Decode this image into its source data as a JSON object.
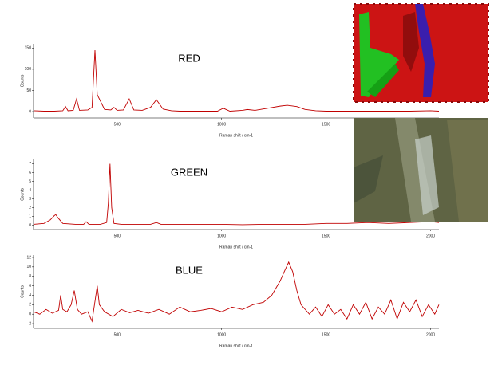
{
  "chart_data": [
    {
      "type": "line",
      "title": "RED",
      "x_label": "Raman shift / cm-1",
      "y_label": "Counts",
      "color": "#c00000",
      "xlim": [
        100,
        2040
      ],
      "ylim": [
        -15,
        160
      ],
      "xticks": [
        500,
        1000,
        1500
      ],
      "yticks": [
        0,
        50,
        100,
        150
      ],
      "x": [
        100,
        150,
        200,
        240,
        253,
        265,
        290,
        306,
        320,
        360,
        380,
        394,
        405,
        420,
        440,
        470,
        485,
        500,
        530,
        558,
        580,
        620,
        660,
        688,
        720,
        760,
        800,
        900,
        980,
        1008,
        1040,
        1100,
        1123,
        1160,
        1220,
        1280,
        1314,
        1360,
        1400,
        1450,
        1500,
        1600,
        1700,
        1800,
        1900,
        2000,
        2040
      ],
      "values": [
        2,
        1,
        1,
        2,
        12,
        2,
        3,
        30,
        3,
        4,
        10,
        145,
        40,
        25,
        5,
        4,
        10,
        3,
        4,
        30,
        4,
        3,
        10,
        28,
        6,
        2,
        1,
        1,
        1,
        8,
        1,
        3,
        5,
        3,
        8,
        13,
        15,
        12,
        5,
        2,
        1,
        1,
        1,
        1,
        1,
        2,
        1
      ]
    },
    {
      "type": "line",
      "title": "GREEN",
      "x_label": "Raman shift / cm-1",
      "y_label": "Counts",
      "color": "#c00000",
      "xlim": [
        100,
        2040
      ],
      "ylim": [
        -0.5,
        7.5
      ],
      "xticks": [
        500,
        1000,
        1500,
        2000
      ],
      "yticks": [
        0,
        1,
        2,
        3,
        4,
        5,
        6,
        7
      ],
      "x": [
        100,
        150,
        180,
        200,
        207,
        215,
        240,
        300,
        340,
        352,
        365,
        420,
        450,
        458,
        466,
        474,
        485,
        520,
        600,
        660,
        688,
        710,
        800,
        900,
        1000,
        1100,
        1200,
        1300,
        1400,
        1500,
        1600,
        1700,
        1800,
        1900,
        2000,
        2040
      ],
      "values": [
        0.1,
        0.2,
        0.6,
        1.1,
        1.2,
        0.9,
        0.2,
        0.1,
        0.1,
        0.4,
        0.1,
        0.1,
        0.3,
        2.5,
        7,
        2,
        0.2,
        0.1,
        0.1,
        0.1,
        0.3,
        0.1,
        0.1,
        0.1,
        0.1,
        0.05,
        0.1,
        0.1,
        0.1,
        0.2,
        0.2,
        0.3,
        0.2,
        0.3,
        0.4,
        0.3
      ]
    },
    {
      "type": "line",
      "title": "BLUE",
      "x_label": "Raman shift / cm-1",
      "y_label": "Counts",
      "color": "#c00000",
      "xlim": [
        100,
        2040
      ],
      "ylim": [
        -3,
        12.5
      ],
      "xticks": [
        500,
        1000,
        1500,
        2000
      ],
      "yticks": [
        -2,
        0,
        2,
        4,
        6,
        8,
        10,
        12
      ],
      "x": [
        100,
        130,
        160,
        190,
        220,
        230,
        240,
        260,
        280,
        295,
        310,
        330,
        360,
        380,
        395,
        405,
        415,
        440,
        480,
        520,
        560,
        600,
        650,
        700,
        750,
        800,
        850,
        900,
        950,
        1000,
        1050,
        1100,
        1150,
        1200,
        1240,
        1280,
        1300,
        1321,
        1340,
        1360,
        1380,
        1400,
        1420,
        1450,
        1480,
        1510,
        1540,
        1570,
        1600,
        1630,
        1660,
        1690,
        1720,
        1750,
        1780,
        1810,
        1840,
        1870,
        1900,
        1930,
        1960,
        1990,
        2020,
        2040
      ],
      "values": [
        0.5,
        0,
        1,
        0.2,
        0.8,
        4,
        1,
        0.5,
        2,
        5,
        1,
        0,
        0.5,
        -1.5,
        3,
        6,
        2,
        0.5,
        -0.5,
        1,
        0.3,
        0.8,
        0.2,
        1,
        0,
        1.5,
        0.5,
        0.8,
        1.2,
        0.5,
        1.5,
        1,
        2,
        2.5,
        4,
        7,
        9,
        11,
        9,
        5,
        2,
        1,
        0,
        1.5,
        -0.5,
        2,
        0,
        1,
        -1,
        2,
        0,
        2.5,
        -1,
        1.5,
        0,
        3,
        -1,
        2.5,
        0.5,
        3,
        -0.5,
        2,
        0,
        2
      ]
    }
  ]
}
